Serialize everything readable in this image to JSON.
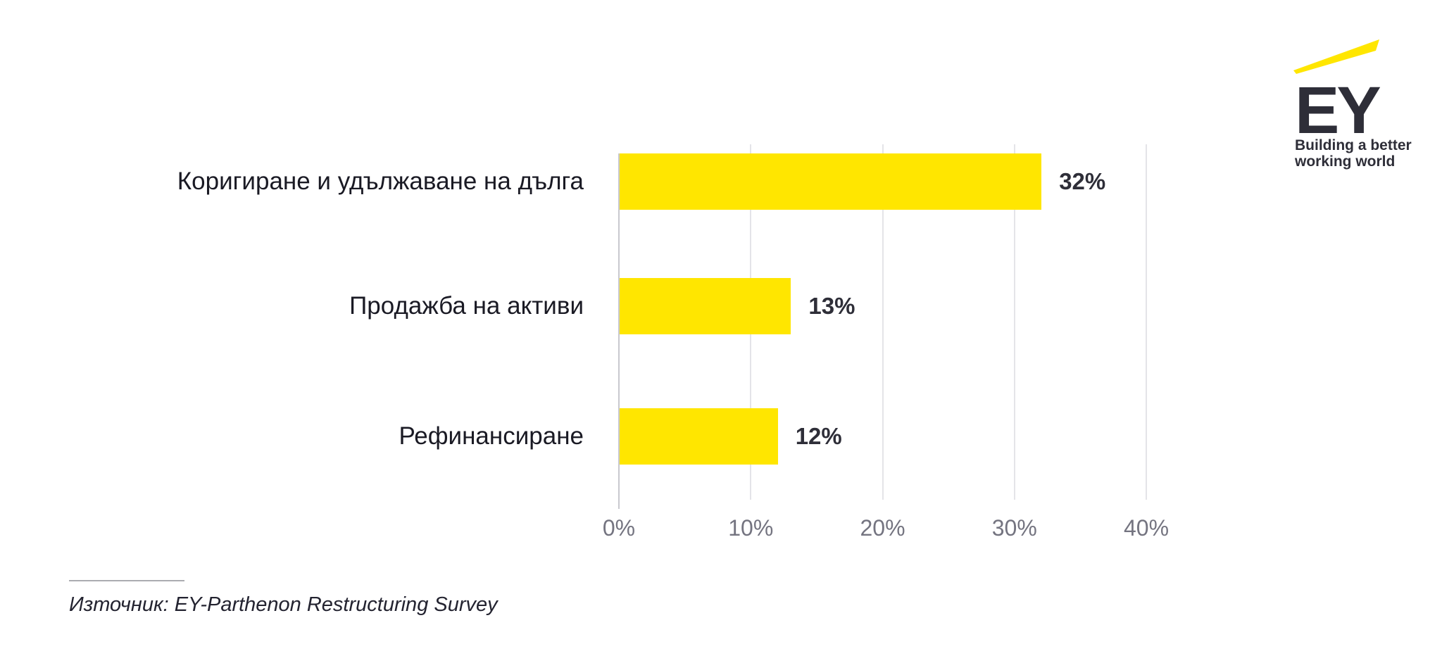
{
  "chart_data": {
    "type": "bar",
    "orientation": "horizontal",
    "title": "",
    "xlabel": "",
    "ylabel": "",
    "categories": [
      "Коригиране и удължаване на дълга",
      "Продажба на активи",
      "Рефинансиране"
    ],
    "values": [
      32,
      13,
      12
    ],
    "value_labels": [
      "32%",
      "13%",
      "12%"
    ],
    "x_tick_labels": [
      "0%",
      "10%",
      "20%",
      "30%",
      "40%"
    ],
    "x_tick_values": [
      0,
      10,
      20,
      30,
      40
    ],
    "xlim": [
      0,
      40
    ],
    "grid": "vertical gridlines",
    "legend": "none",
    "bar_color": "#FFE600"
  },
  "logo": {
    "brand": "EY",
    "tagline_line1": "Building a better",
    "tagline_line2": "working world"
  },
  "source": {
    "text": "Източник: EY-Parthenon Restructuring Survey"
  },
  "colors": {
    "bar": "#FFE600",
    "value_label": "#2E2E38",
    "category_label": "#1A1A24",
    "axis_label": "#747480",
    "gridline": "#E4E4E8",
    "axis_line": "#C9C9CF",
    "logo_dark": "#2E2E38",
    "logo_yellow": "#FFE600",
    "divider": "#ABACB0",
    "source_text": "#232330"
  }
}
